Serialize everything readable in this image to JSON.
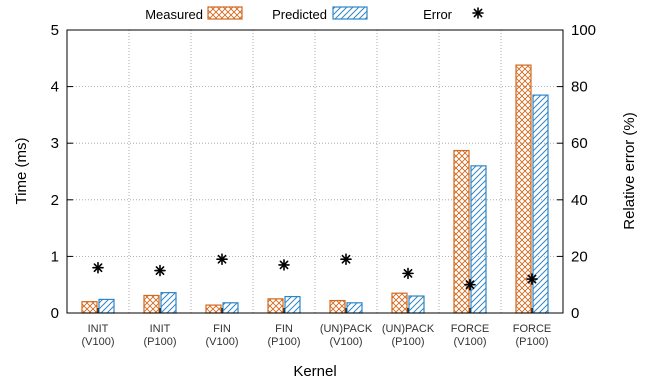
{
  "chart_data": {
    "type": "bar",
    "categories": [
      [
        "INIT",
        "(V100)"
      ],
      [
        "INIT",
        "(P100)"
      ],
      [
        "FIN",
        "(V100)"
      ],
      [
        "FIN",
        "(P100)"
      ],
      [
        "(UN)PACK",
        "(V100)"
      ],
      [
        "(UN)PACK",
        "(P100)"
      ],
      [
        "FORCE",
        "(V100)"
      ],
      [
        "FORCE",
        "(P100)"
      ]
    ],
    "series": [
      {
        "name": "Measured",
        "color": "#d2691e",
        "pattern": "crosshatch",
        "axis": "left",
        "values": [
          0.2,
          0.31,
          0.14,
          0.25,
          0.22,
          0.35,
          2.87,
          4.38
        ]
      },
      {
        "name": "Predicted",
        "color": "#2f86c6",
        "pattern": "diagonal",
        "axis": "left",
        "values": [
          0.24,
          0.36,
          0.18,
          0.29,
          0.18,
          0.3,
          2.6,
          3.85
        ]
      },
      {
        "name": "Error",
        "marker": "asterisk",
        "color": "#000000",
        "axis": "right",
        "values": [
          16,
          15,
          19,
          17,
          19,
          14,
          10,
          12
        ]
      }
    ],
    "xlabel": "Kernel",
    "ylabel": "Time (ms)",
    "y2label": "Relative error (%)",
    "ylim": [
      0,
      5
    ],
    "y2lim": [
      0,
      100
    ],
    "yticks": [
      "0",
      "1",
      "2",
      "3",
      "4",
      "5"
    ],
    "y2ticks": [
      "0",
      "20",
      "40",
      "60",
      "80",
      "100"
    ],
    "grid": true,
    "legend_position": "top"
  }
}
